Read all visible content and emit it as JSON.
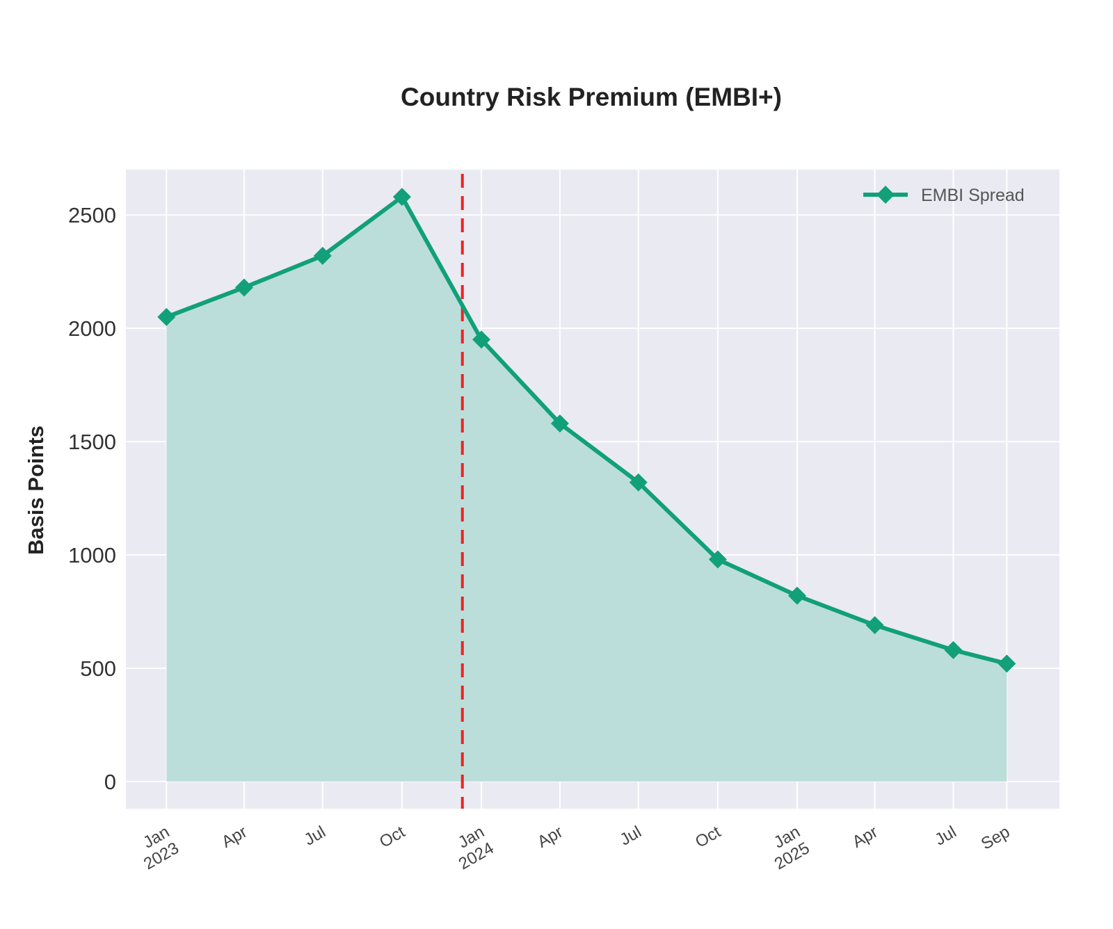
{
  "chart_data": {
    "type": "area",
    "title": "Country Risk Premium (EMBI+)",
    "xlabel": "",
    "ylabel": "Basis Points",
    "x": [
      "2023-01",
      "2023-04",
      "2023-07",
      "2023-10",
      "2024-01",
      "2024-04",
      "2024-07",
      "2024-10",
      "2025-01",
      "2025-04",
      "2025-07",
      "2025-09"
    ],
    "x_tick_labels": [
      {
        "date": "2023-01",
        "lines": [
          "Jan",
          "2023"
        ]
      },
      {
        "date": "2023-04",
        "lines": [
          "Apr"
        ]
      },
      {
        "date": "2023-07",
        "lines": [
          "Jul"
        ]
      },
      {
        "date": "2023-10",
        "lines": [
          "Oct"
        ]
      },
      {
        "date": "2024-01",
        "lines": [
          "Jan",
          "2024"
        ]
      },
      {
        "date": "2024-04",
        "lines": [
          "Apr"
        ]
      },
      {
        "date": "2024-07",
        "lines": [
          "Jul"
        ]
      },
      {
        "date": "2024-10",
        "lines": [
          "Oct"
        ]
      },
      {
        "date": "2025-01",
        "lines": [
          "Jan",
          "2025"
        ]
      },
      {
        "date": "2025-04",
        "lines": [
          "Apr"
        ]
      },
      {
        "date": "2025-07",
        "lines": [
          "Jul"
        ]
      },
      {
        "date": "2025-09",
        "lines": [
          "Sep"
        ]
      }
    ],
    "y_ticks": [
      0,
      500,
      1000,
      1500,
      2000,
      2500
    ],
    "ylim": [
      -120,
      2700
    ],
    "xlim": [
      "2022-11-15",
      "2025-11-01"
    ],
    "series": [
      {
        "name": "EMBI Spread",
        "color": "#11a07a",
        "fill_color": "#bcdeda",
        "marker": "diamond",
        "x": [
          "2023-01-01",
          "2023-04-01",
          "2023-07-01",
          "2023-10-01",
          "2024-01-01",
          "2024-04-01",
          "2024-07-01",
          "2024-10-01",
          "2025-01-01",
          "2025-04-01",
          "2025-07-01",
          "2025-09-01"
        ],
        "values": [
          2050,
          2180,
          2320,
          2580,
          1950,
          1580,
          1320,
          980,
          820,
          690,
          580,
          520
        ]
      }
    ],
    "reference_line": {
      "x": "2023-12-10",
      "style": "dashed",
      "color": "#ee2222"
    },
    "grid": true,
    "background": "#eaeaf2",
    "legend": "top-right"
  }
}
